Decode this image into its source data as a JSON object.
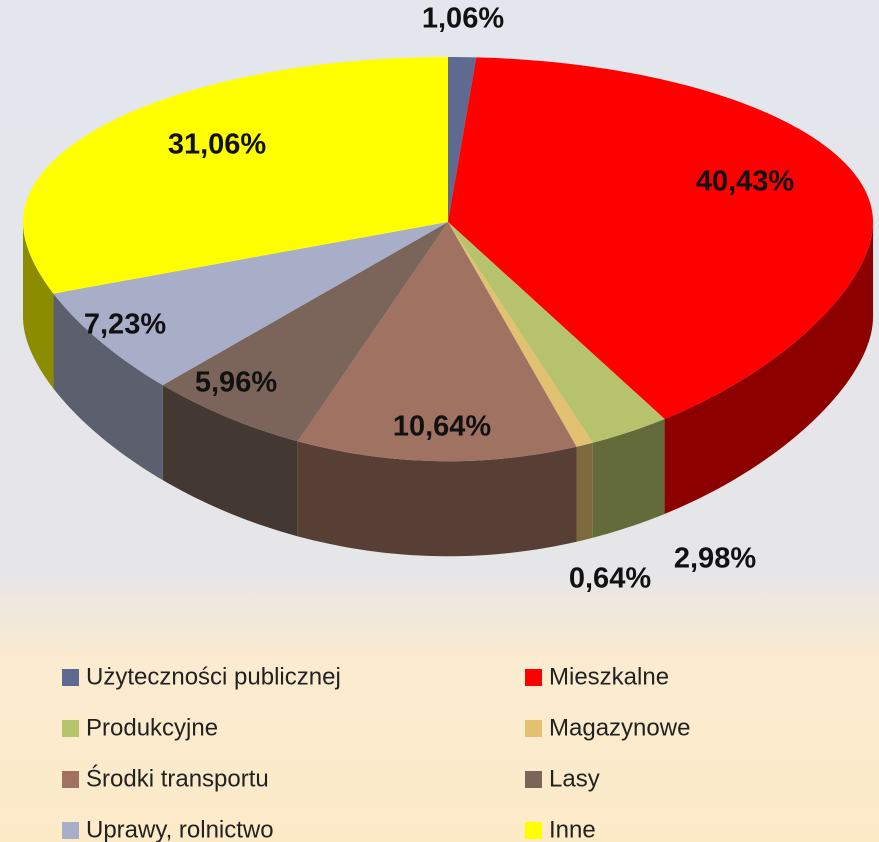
{
  "chart_data": {
    "type": "pie",
    "categories": [
      "Użyteczności publicznej",
      "Mieszkalne",
      "Produkcyjne",
      "Magazynowe",
      "Środki transportu",
      "Lasy",
      "Uprawy, rolnictwo",
      "Inne"
    ],
    "values": [
      1.06,
      40.43,
      2.98,
      0.64,
      10.64,
      5.96,
      7.23,
      31.06
    ],
    "value_labels": [
      "1,06%",
      "40,43%",
      "2,98%",
      "0,64%",
      "10,64%",
      "5,96%",
      "7,23%",
      "31,06%"
    ],
    "colors": [
      "#5f6a90",
      "#ff0000",
      "#b6c36c",
      "#e3c172",
      "#a07262",
      "#7b655a",
      "#a8adc8",
      "#ffff00"
    ]
  }
}
